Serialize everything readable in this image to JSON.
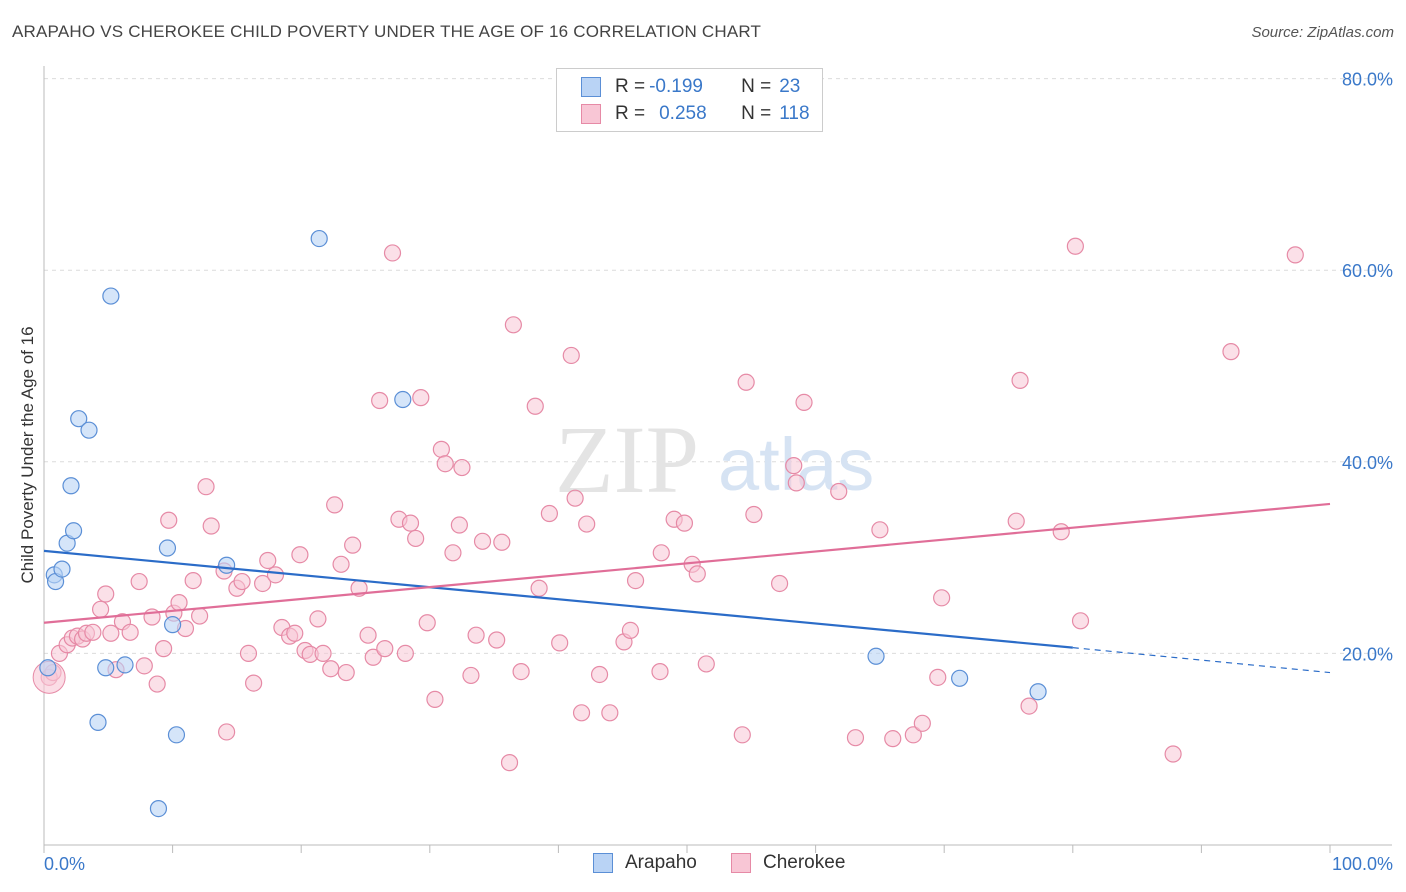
{
  "title": "ARAPAHO VS CHEROKEE CHILD POVERTY UNDER THE AGE OF 16 CORRELATION CHART",
  "source": "Source: ZipAtlas.com",
  "watermark": {
    "zip": "ZIP",
    "atlas": "atlas"
  },
  "legend": {
    "rows": [
      {
        "r_label": "R = ",
        "r_value": "-0.199",
        "n_label": "N = ",
        "n_value": "23"
      },
      {
        "r_label": "R = ",
        "r_value": "0.258",
        "n_label": "N = ",
        "n_value": "118"
      }
    ]
  },
  "colors": {
    "arapaho_fill": "#b9d3f5",
    "arapaho_stroke": "#5b8fd6",
    "arapaho_line": "#2b6cc8",
    "cherokee_fill": "#f8c6d5",
    "cherokee_stroke": "#e68aa6",
    "cherokee_line": "#e06e98",
    "tick_label": "#3a78c9"
  },
  "chart_data": {
    "type": "scatter",
    "title": "ARAPAHO VS CHEROKEE CHILD POVERTY UNDER THE AGE OF 16 CORRELATION CHART",
    "xlabel": "",
    "ylabel": "Child Poverty Under the Age of 16",
    "xlim": [
      0,
      100
    ],
    "ylim": [
      0,
      80
    ],
    "x_tick_labels": [
      "0.0%",
      "100.0%"
    ],
    "y_ticks": [
      20,
      40,
      60,
      80
    ],
    "y_tick_labels": [
      "20.0%",
      "40.0%",
      "60.0%",
      "80.0%"
    ],
    "grid": "horizontal dashed",
    "legend_position": "top-center and bottom",
    "series": [
      {
        "name": "Arapaho",
        "r": -0.199,
        "n": 23,
        "trend": {
          "x0": 0,
          "y0": 30.7,
          "x1": 80,
          "y1": 20.6,
          "dashed_to_x": 100,
          "dashed_to_y": 18.0
        },
        "points": [
          [
            0.3,
            18.5
          ],
          [
            0.8,
            28.2
          ],
          [
            0.9,
            27.5
          ],
          [
            1.4,
            28.8
          ],
          [
            1.8,
            31.5
          ],
          [
            2.1,
            37.5
          ],
          [
            2.3,
            32.8
          ],
          [
            2.7,
            44.5
          ],
          [
            3.5,
            43.3
          ],
          [
            4.2,
            12.8
          ],
          [
            4.8,
            18.5
          ],
          [
            5.2,
            57.3
          ],
          [
            6.3,
            18.8
          ],
          [
            8.9,
            3.8
          ],
          [
            9.6,
            31.0
          ],
          [
            10.0,
            23.0
          ],
          [
            10.3,
            11.5
          ],
          [
            14.2,
            29.2
          ],
          [
            21.4,
            63.3
          ],
          [
            27.9,
            46.5
          ],
          [
            64.7,
            19.7
          ],
          [
            71.2,
            17.4
          ],
          [
            77.3,
            16.0
          ]
        ]
      },
      {
        "name": "Cherokee",
        "r": 0.258,
        "n": 118,
        "trend": {
          "x0": 0,
          "y0": 23.2,
          "x1": 100,
          "y1": 35.6
        },
        "points": [
          [
            0.4,
            17.5
          ],
          [
            0.7,
            18.0
          ],
          [
            1.2,
            20.0
          ],
          [
            1.8,
            20.9
          ],
          [
            2.2,
            21.6
          ],
          [
            2.6,
            21.8
          ],
          [
            3.0,
            21.5
          ],
          [
            3.3,
            22.1
          ],
          [
            3.8,
            22.2
          ],
          [
            4.4,
            24.6
          ],
          [
            4.8,
            26.2
          ],
          [
            5.2,
            22.1
          ],
          [
            5.6,
            18.3
          ],
          [
            6.1,
            23.3
          ],
          [
            6.7,
            22.2
          ],
          [
            7.4,
            27.5
          ],
          [
            7.8,
            18.7
          ],
          [
            8.4,
            23.8
          ],
          [
            8.8,
            16.8
          ],
          [
            9.3,
            20.5
          ],
          [
            9.7,
            33.9
          ],
          [
            10.1,
            24.2
          ],
          [
            10.5,
            25.3
          ],
          [
            11.0,
            22.6
          ],
          [
            11.6,
            27.6
          ],
          [
            12.1,
            23.9
          ],
          [
            12.6,
            37.4
          ],
          [
            13.0,
            33.3
          ],
          [
            14.0,
            28.6
          ],
          [
            14.2,
            11.8
          ],
          [
            15.0,
            26.8
          ],
          [
            15.4,
            27.5
          ],
          [
            15.9,
            20.0
          ],
          [
            16.3,
            16.9
          ],
          [
            17.0,
            27.3
          ],
          [
            17.4,
            29.7
          ],
          [
            18.0,
            28.2
          ],
          [
            18.5,
            22.7
          ],
          [
            19.1,
            21.8
          ],
          [
            19.5,
            22.1
          ],
          [
            19.9,
            30.3
          ],
          [
            20.3,
            20.3
          ],
          [
            20.7,
            19.9
          ],
          [
            21.3,
            23.6
          ],
          [
            21.7,
            20.0
          ],
          [
            22.3,
            18.4
          ],
          [
            22.6,
            35.5
          ],
          [
            23.1,
            29.3
          ],
          [
            23.5,
            18.0
          ],
          [
            24.0,
            31.3
          ],
          [
            24.5,
            26.8
          ],
          [
            25.2,
            21.9
          ],
          [
            25.6,
            19.6
          ],
          [
            26.1,
            46.4
          ],
          [
            26.5,
            20.5
          ],
          [
            27.1,
            61.8
          ],
          [
            27.6,
            34.0
          ],
          [
            28.1,
            20.0
          ],
          [
            28.5,
            33.6
          ],
          [
            28.9,
            32.0
          ],
          [
            29.3,
            46.7
          ],
          [
            29.8,
            23.2
          ],
          [
            30.4,
            15.2
          ],
          [
            30.9,
            41.3
          ],
          [
            31.2,
            39.8
          ],
          [
            31.8,
            30.5
          ],
          [
            32.3,
            33.4
          ],
          [
            32.5,
            39.4
          ],
          [
            33.2,
            17.7
          ],
          [
            33.6,
            21.9
          ],
          [
            34.1,
            31.7
          ],
          [
            35.2,
            21.4
          ],
          [
            35.6,
            31.6
          ],
          [
            36.2,
            8.6
          ],
          [
            36.5,
            54.3
          ],
          [
            37.1,
            18.1
          ],
          [
            38.2,
            45.8
          ],
          [
            38.5,
            26.8
          ],
          [
            39.3,
            34.6
          ],
          [
            40.1,
            21.1
          ],
          [
            41.0,
            51.1
          ],
          [
            41.3,
            36.2
          ],
          [
            41.8,
            13.8
          ],
          [
            42.2,
            33.5
          ],
          [
            43.2,
            17.8
          ],
          [
            44.0,
            13.8
          ],
          [
            45.1,
            21.2
          ],
          [
            45.6,
            22.4
          ],
          [
            46.0,
            27.6
          ],
          [
            47.9,
            18.1
          ],
          [
            48.0,
            30.5
          ],
          [
            49.0,
            34.0
          ],
          [
            49.8,
            33.6
          ],
          [
            50.4,
            29.3
          ],
          [
            50.8,
            28.3
          ],
          [
            51.5,
            18.9
          ],
          [
            54.3,
            11.5
          ],
          [
            54.6,
            48.3
          ],
          [
            55.2,
            34.5
          ],
          [
            57.2,
            27.3
          ],
          [
            58.3,
            39.6
          ],
          [
            58.5,
            37.8
          ],
          [
            59.1,
            46.2
          ],
          [
            61.8,
            36.9
          ],
          [
            63.1,
            11.2
          ],
          [
            65.0,
            32.9
          ],
          [
            66.0,
            11.1
          ],
          [
            67.6,
            11.5
          ],
          [
            68.3,
            12.7
          ],
          [
            69.5,
            17.5
          ],
          [
            69.8,
            25.8
          ],
          [
            75.6,
            33.8
          ],
          [
            75.9,
            48.5
          ],
          [
            76.6,
            14.5
          ],
          [
            79.1,
            32.7
          ],
          [
            80.2,
            62.5
          ],
          [
            80.6,
            23.4
          ],
          [
            87.8,
            9.5
          ],
          [
            92.3,
            51.5
          ],
          [
            97.3,
            61.6
          ]
        ]
      }
    ]
  },
  "bottom_legend": {
    "items": [
      "Arapaho",
      "Cherokee"
    ]
  }
}
